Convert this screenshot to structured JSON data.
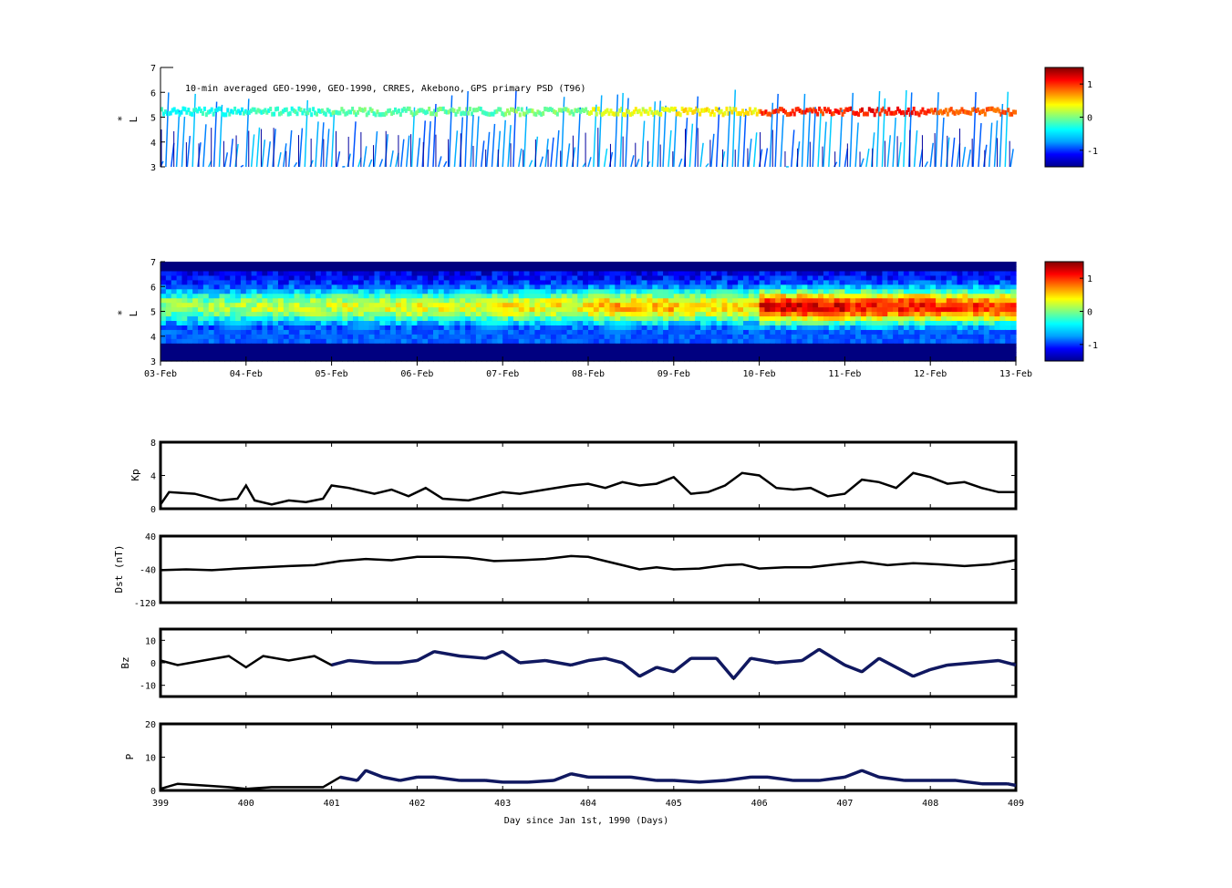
{
  "colors": {
    "axis": "#000000",
    "line": "#000000",
    "hires": "#101860",
    "colormap": [
      "#00008f",
      "#0000ff",
      "#00a0ff",
      "#00ffff",
      "#80ff80",
      "#ffff00",
      "#ff8000",
      "#ff0000",
      "#800000"
    ]
  },
  "chart_data": [
    {
      "id": "psd_observations",
      "type": "heatmap",
      "title": "10-min averaged GEO-1990, GEO-1990, CRRES, Akebono, GPS  primary PSD (T96)",
      "ylabel": "L*",
      "ylabel_main": "L",
      "ylabel_sup": "*",
      "ylim": [
        3,
        7
      ],
      "yticks": [
        "3",
        "4",
        "5",
        "6",
        "7"
      ],
      "xlim": [
        399,
        409
      ],
      "colorbar": {
        "ticks": [
          "1",
          "0",
          "-1"
        ],
        "range": [
          -1.5,
          1.5
        ]
      },
      "mean_level_by_day": [
        -0.3,
        -0.2,
        -0.1,
        -0.1,
        0.0,
        0.3,
        0.4,
        1.0,
        1.1,
        0.9
      ]
    },
    {
      "id": "psd_reanalysis",
      "type": "heatmap",
      "ylabel": "L*",
      "ylabel_main": "L",
      "ylabel_sup": "*",
      "ylim": [
        3,
        7
      ],
      "yticks": [
        "3",
        "4",
        "5",
        "6",
        "7"
      ],
      "xlim": [
        399,
        409
      ],
      "xticklabels": [
        "03-Feb",
        "04-Feb",
        "05-Feb",
        "06-Feb",
        "07-Feb",
        "08-Feb",
        "09-Feb",
        "10-Feb",
        "11-Feb",
        "12-Feb",
        "13-Feb"
      ],
      "colorbar": {
        "ticks": [
          "1",
          "0",
          "-1"
        ],
        "range": [
          -1.5,
          1.5
        ]
      },
      "mean_level_by_day": [
        0.1,
        0.2,
        0.3,
        0.3,
        0.4,
        0.6,
        0.5,
        1.2,
        1.1,
        1.0
      ]
    },
    {
      "id": "kp",
      "type": "line",
      "ylabel": "Kp",
      "ylim": [
        0,
        8
      ],
      "yticks": [
        "0",
        "4",
        "8"
      ],
      "xlim": [
        399,
        409
      ],
      "x": [
        399.0,
        399.1,
        399.4,
        399.7,
        399.9,
        400.0,
        400.1,
        400.3,
        400.5,
        400.7,
        400.9,
        401.0,
        401.2,
        401.5,
        401.7,
        401.9,
        402.1,
        402.3,
        402.6,
        402.8,
        403.0,
        403.2,
        403.5,
        403.8,
        404.0,
        404.2,
        404.4,
        404.6,
        404.8,
        405.0,
        405.2,
        405.4,
        405.6,
        405.8,
        406.0,
        406.2,
        406.4,
        406.6,
        406.8,
        407.0,
        407.2,
        407.4,
        407.6,
        407.8,
        408.0,
        408.2,
        408.4,
        408.6,
        408.8,
        409.0
      ],
      "series": [
        {
          "values": [
            0.5,
            2.0,
            1.8,
            1.0,
            1.2,
            2.8,
            1.0,
            0.5,
            1.0,
            0.8,
            1.2,
            2.8,
            2.5,
            1.8,
            2.3,
            1.5,
            2.5,
            1.2,
            1.0,
            1.5,
            2.0,
            1.8,
            2.3,
            2.8,
            3.0,
            2.5,
            3.2,
            2.8,
            3.0,
            3.8,
            1.8,
            2.0,
            2.8,
            4.3,
            4.0,
            2.5,
            2.3,
            2.5,
            1.5,
            1.8,
            3.5,
            3.2,
            2.5,
            4.3,
            3.8,
            3.0,
            3.2,
            2.5,
            2.0,
            2.0
          ]
        }
      ]
    },
    {
      "id": "dst",
      "type": "line",
      "ylabel": "Dst (nT)",
      "ylim": [
        -120,
        40
      ],
      "yticks": [
        "-120",
        "-40",
        "40"
      ],
      "xlim": [
        399,
        409
      ],
      "x": [
        399.0,
        399.3,
        399.6,
        399.9,
        400.2,
        400.5,
        400.8,
        401.1,
        401.4,
        401.7,
        402.0,
        402.3,
        402.6,
        402.9,
        403.2,
        403.5,
        403.8,
        404.0,
        404.2,
        404.4,
        404.6,
        404.8,
        405.0,
        405.3,
        405.6,
        405.8,
        406.0,
        406.3,
        406.6,
        406.9,
        407.2,
        407.5,
        407.8,
        408.1,
        408.4,
        408.7,
        409.0
      ],
      "series": [
        {
          "values": [
            -42,
            -40,
            -42,
            -38,
            -35,
            -32,
            -30,
            -20,
            -15,
            -18,
            -10,
            -10,
            -12,
            -20,
            -18,
            -15,
            -8,
            -10,
            -20,
            -30,
            -40,
            -35,
            -40,
            -38,
            -30,
            -28,
            -38,
            -35,
            -35,
            -28,
            -22,
            -30,
            -25,
            -28,
            -32,
            -28,
            -18
          ]
        }
      ]
    },
    {
      "id": "bz",
      "type": "line",
      "ylabel": "Bz",
      "ylim": [
        -15,
        15
      ],
      "yticks": [
        "-10",
        "0",
        "10"
      ],
      "xlim": [
        399,
        409
      ],
      "x": [
        399.0,
        399.2,
        399.5,
        399.8,
        400.0,
        400.2,
        400.5,
        400.8,
        401.0,
        401.2,
        401.5,
        401.8,
        402.0,
        402.2,
        402.5,
        402.8,
        403.0,
        403.2,
        403.5,
        403.8,
        404.0,
        404.2,
        404.4,
        404.6,
        404.8,
        405.0,
        405.2,
        405.5,
        405.7,
        405.9,
        406.2,
        406.5,
        406.7,
        407.0,
        407.2,
        407.4,
        407.6,
        407.8,
        408.0,
        408.2,
        408.5,
        408.8,
        409.0
      ],
      "series": [
        {
          "values": [
            1,
            -1,
            1,
            3,
            -2,
            3,
            1,
            3,
            -1,
            1,
            0,
            0,
            1,
            5,
            3,
            2,
            5,
            0,
            1,
            -1,
            1,
            2,
            0,
            -6,
            -2,
            -4,
            2,
            2,
            -7,
            2,
            0,
            1,
            6,
            -1,
            -4,
            2,
            -2,
            -6,
            -3,
            -1,
            0,
            1,
            -1
          ]
        }
      ]
    },
    {
      "id": "pdyn",
      "type": "line",
      "ylabel": "P",
      "ylim": [
        0,
        20
      ],
      "yticks": [
        "0",
        "10",
        "20"
      ],
      "xlim": [
        399,
        409
      ],
      "xticks": [
        "399",
        "400",
        "401",
        "402",
        "403",
        "404",
        "405",
        "406",
        "407",
        "408",
        "409"
      ],
      "xlabel": "Day since Jan 1st, 1990 (Days)",
      "x": [
        399.0,
        399.2,
        399.5,
        399.8,
        400.0,
        400.3,
        400.6,
        400.9,
        401.1,
        401.3,
        401.4,
        401.6,
        401.8,
        402.0,
        402.2,
        402.5,
        402.8,
        403.0,
        403.3,
        403.6,
        403.8,
        404.0,
        404.2,
        404.5,
        404.8,
        405.0,
        405.3,
        405.6,
        405.9,
        406.1,
        406.4,
        406.7,
        407.0,
        407.2,
        407.4,
        407.7,
        408.0,
        408.3,
        408.6,
        408.9,
        409.0
      ],
      "series": [
        {
          "values": [
            0.5,
            2,
            1.5,
            1,
            0.5,
            1,
            1,
            1,
            4,
            3,
            6,
            4,
            3,
            4,
            4,
            3,
            3,
            2.5,
            2.5,
            3,
            5,
            4,
            4,
            4,
            3,
            3,
            2.5,
            3,
            4,
            4,
            3,
            3,
            4,
            6,
            4,
            3,
            3,
            3,
            2,
            2,
            1.5
          ]
        }
      ]
    }
  ]
}
